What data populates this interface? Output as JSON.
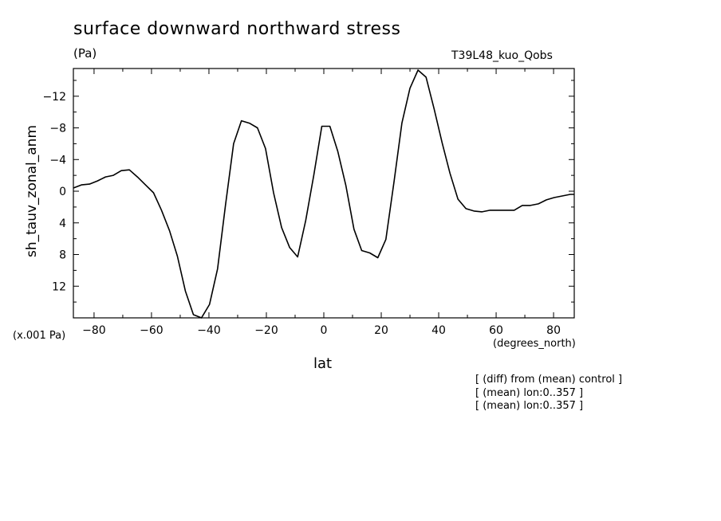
{
  "chart_data": {
    "type": "line",
    "title": "surface downward northward stress",
    "units": "(Pa)",
    "run_label": "T39L48_kuo_Qobs",
    "scale_label": "(x.001 Pa)",
    "xlabel": "lat",
    "xunits": "(degrees_north)",
    "ylabel": "sh_tauv_zonal_anm",
    "xlim": [
      -87.2,
      87.2
    ],
    "ylim": [
      16,
      -15.5
    ],
    "y_inverted": true,
    "xticks": [
      -80,
      -60,
      -40,
      -20,
      0,
      20,
      40,
      60,
      80
    ],
    "yticks": [
      -12,
      -8,
      -4,
      0,
      4,
      8,
      12
    ],
    "grid": false,
    "series": [
      {
        "x": [
          -87.2,
          -84.4,
          -81.6,
          -78.8,
          -76.0,
          -73.3,
          -70.5,
          -67.7,
          -64.9,
          -62.1,
          -59.3,
          -56.5,
          -53.7,
          -51.0,
          -48.2,
          -45.4,
          -42.6,
          -39.8,
          -37.0,
          -34.2,
          -31.4,
          -28.7,
          -25.9,
          -23.1,
          -20.3,
          -17.5,
          -14.7,
          -11.9,
          -9.1,
          -6.3,
          -3.5,
          -0.7,
          2.1,
          4.9,
          7.7,
          10.5,
          13.2,
          16.0,
          18.8,
          21.6,
          24.4,
          27.2,
          30.0,
          32.8,
          35.6,
          38.4,
          41.2,
          43.9,
          46.7,
          49.5,
          52.3,
          55.1,
          57.9,
          60.7,
          63.5,
          66.3,
          69.1,
          71.9,
          74.7,
          77.5,
          80.2,
          83.0,
          85.8,
          87.2
        ],
        "y": [
          -0.4,
          -0.8,
          -0.9,
          -1.3,
          -1.8,
          -2.0,
          -2.6,
          -2.7,
          -1.8,
          -0.8,
          0.2,
          2.4,
          5.0,
          8.2,
          12.6,
          15.6,
          16.0,
          14.3,
          9.8,
          1.7,
          -6.0,
          -8.9,
          -8.6,
          -8.0,
          -5.4,
          0.2,
          4.6,
          7.1,
          8.3,
          3.7,
          -2.0,
          -8.2,
          -8.2,
          -5.0,
          -0.7,
          4.8,
          7.5,
          7.8,
          8.4,
          6.1,
          -1.1,
          -8.6,
          -13.0,
          -15.3,
          -14.4,
          -10.4,
          -6.1,
          -2.3,
          1.0,
          2.2,
          2.5,
          2.6,
          2.4,
          2.4,
          2.4,
          2.4,
          1.8,
          1.8,
          1.6,
          1.1,
          0.8,
          0.6,
          0.4,
          0.4
        ]
      }
    ]
  },
  "notes": [
    "[ (diff) from (mean) control ]",
    "[ (mean) lon:0..357 ]",
    "[ (mean) lon:0..357 ]"
  ]
}
